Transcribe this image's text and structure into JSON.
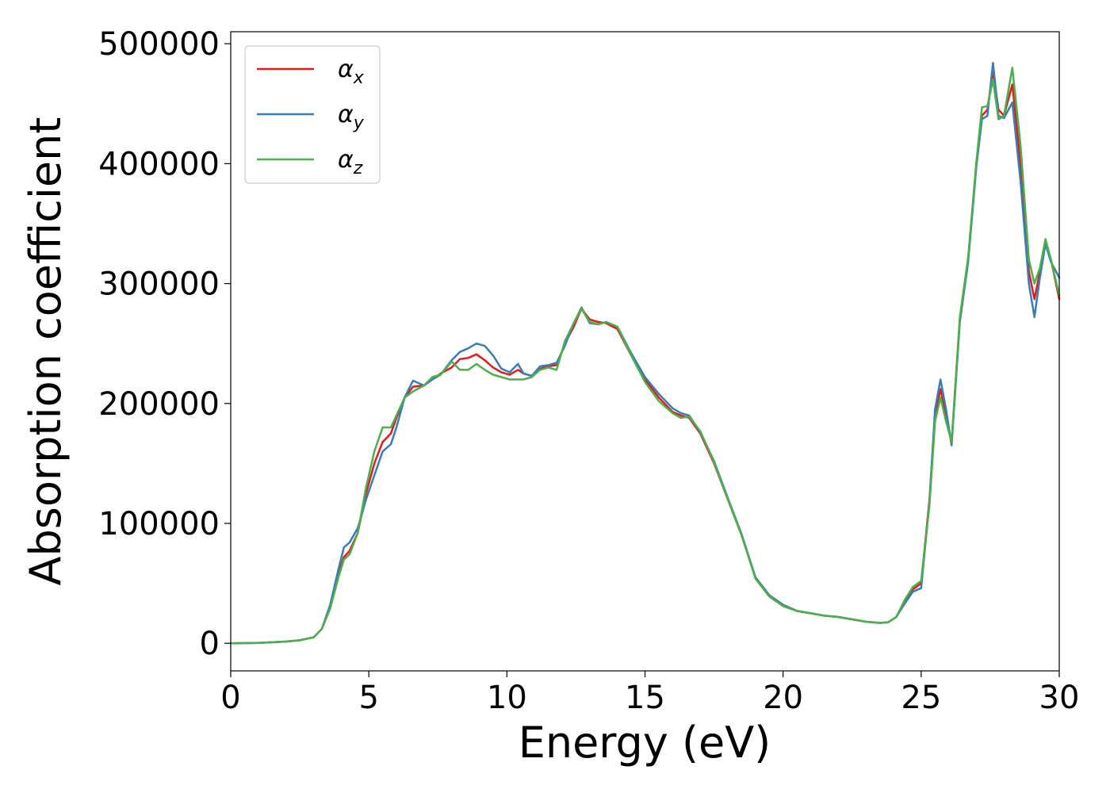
{
  "chart_data": {
    "type": "line",
    "title": "",
    "xlabel": "Energy (eV)",
    "ylabel": "Absorption coefficient",
    "xlim": [
      0,
      30
    ],
    "ylim": [
      -23000,
      510000
    ],
    "xticks": [
      0,
      5,
      10,
      15,
      20,
      25,
      30
    ],
    "yticks": [
      0,
      100000,
      200000,
      300000,
      400000,
      500000
    ],
    "xtick_labels": [
      "0",
      "5",
      "10",
      "15",
      "20",
      "25",
      "30"
    ],
    "ytick_labels": [
      "0",
      "100000",
      "200000",
      "300000",
      "400000",
      "500000"
    ],
    "grid": false,
    "legend_position": "top-left",
    "x": [
      0,
      1,
      2,
      2.5,
      3,
      3.3,
      3.6,
      3.9,
      4.1,
      4.3,
      4.6,
      4.9,
      5.2,
      5.5,
      5.8,
      6.0,
      6.3,
      6.6,
      7.0,
      7.3,
      7.6,
      8.0,
      8.3,
      8.6,
      8.9,
      9.2,
      9.5,
      9.8,
      10.1,
      10.4,
      10.6,
      10.9,
      11.2,
      11.5,
      11.8,
      12.1,
      12.4,
      12.7,
      13.0,
      13.3,
      13.6,
      14.0,
      14.5,
      15.0,
      15.5,
      16.0,
      16.3,
      16.6,
      17.0,
      17.5,
      18.0,
      18.5,
      19.0,
      19.5,
      20.0,
      20.5,
      21.0,
      21.5,
      22.0,
      22.5,
      23.0,
      23.5,
      23.8,
      24.1,
      24.4,
      24.7,
      25.0,
      25.3,
      25.5,
      25.7,
      25.9,
      26.1,
      26.4,
      26.7,
      27.0,
      27.2,
      27.4,
      27.6,
      27.8,
      28.0,
      28.3,
      28.6,
      28.9,
      29.1,
      29.3,
      29.5,
      29.7,
      30.0
    ],
    "series": [
      {
        "name": "αx",
        "symbol": "α",
        "subscript": "x",
        "color": "#e41a1c",
        "values": [
          0,
          300,
          1500,
          2500,
          5000,
          12000,
          30000,
          58000,
          72000,
          77000,
          92000,
          125000,
          150000,
          168000,
          175000,
          188000,
          205000,
          214000,
          215000,
          220000,
          225000,
          230000,
          237000,
          238000,
          241000,
          236000,
          230000,
          226000,
          224000,
          228000,
          225000,
          223000,
          229000,
          231000,
          232000,
          250000,
          263000,
          279000,
          270000,
          268000,
          267000,
          262000,
          240000,
          220000,
          205000,
          193000,
          190000,
          188000,
          175000,
          150000,
          120000,
          90000,
          55000,
          40000,
          32000,
          27000,
          25000,
          23000,
          22000,
          20000,
          18000,
          17000,
          17500,
          22000,
          35000,
          45000,
          50000,
          120000,
          190000,
          212000,
          190000,
          167000,
          270000,
          320000,
          400000,
          440000,
          445000,
          477000,
          445000,
          440000,
          466000,
          400000,
          310000,
          287000,
          310000,
          335000,
          320000,
          287000
        ]
      },
      {
        "name": "αy",
        "symbol": "α",
        "subscript": "y",
        "color": "#377eb8",
        "values": [
          0,
          300,
          1500,
          2500,
          5000,
          12000,
          32000,
          62000,
          80000,
          84000,
          96000,
          120000,
          140000,
          160000,
          166000,
          180000,
          205000,
          219000,
          215000,
          220000,
          224000,
          236000,
          243000,
          246000,
          250000,
          248000,
          240000,
          229000,
          226000,
          233000,
          225000,
          223000,
          231000,
          232000,
          234000,
          248000,
          266000,
          280000,
          267000,
          266000,
          268000,
          264000,
          242000,
          222000,
          208000,
          196000,
          192000,
          190000,
          176000,
          152000,
          121000,
          91000,
          55000,
          40000,
          32000,
          27000,
          25000,
          23000,
          22000,
          20000,
          18000,
          17000,
          17500,
          22000,
          33000,
          43000,
          46000,
          118000,
          195000,
          220000,
          195000,
          165000,
          268000,
          318000,
          398000,
          437000,
          440000,
          484000,
          440000,
          438000,
          451000,
          385000,
          300000,
          272000,
          305000,
          333000,
          318000,
          305000
        ]
      },
      {
        "name": "αz",
        "symbol": "α",
        "subscript": "z",
        "color": "#4daf4a",
        "values": [
          0,
          300,
          1500,
          2500,
          5000,
          12000,
          29000,
          55000,
          70000,
          74000,
          92000,
          130000,
          160000,
          180000,
          180000,
          190000,
          205000,
          210000,
          215000,
          222000,
          224000,
          235000,
          228000,
          228000,
          233000,
          228000,
          224000,
          222000,
          220000,
          220000,
          220000,
          222000,
          228000,
          230000,
          228000,
          252000,
          266000,
          279000,
          268000,
          266000,
          268000,
          264000,
          240000,
          218000,
          202000,
          192000,
          188000,
          189000,
          177000,
          151000,
          120000,
          90000,
          54000,
          39000,
          31000,
          27000,
          25000,
          23000,
          22000,
          20000,
          18000,
          17000,
          17500,
          22000,
          36000,
          47000,
          52000,
          115000,
          185000,
          205000,
          185000,
          168000,
          272000,
          322000,
          402000,
          447000,
          448000,
          470000,
          437000,
          440000,
          480000,
          415000,
          320000,
          300000,
          313000,
          337000,
          320000,
          290000
        ]
      }
    ]
  }
}
